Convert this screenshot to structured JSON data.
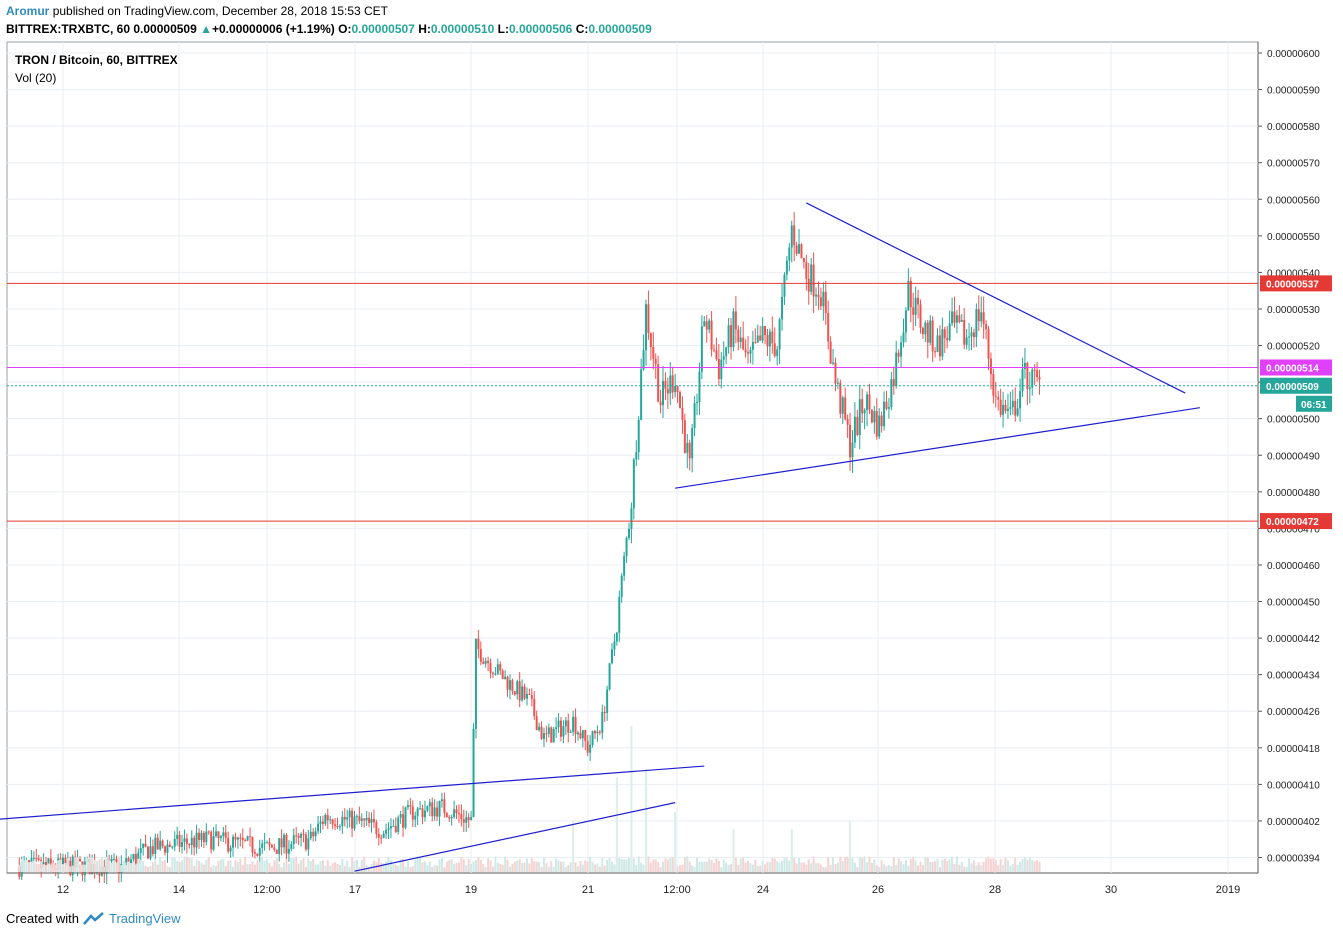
{
  "header": {
    "author": "Aromur",
    "published": "published on TradingView.com, December 28, 2018 15:53 CET",
    "symbol": "BITTREX:TRXBTC, 60",
    "last": "0.00000509",
    "change_arrow": "▲",
    "change": "+0.00000006 (+1.19%)",
    "o_label": "O:",
    "o": "0.00000507",
    "h_label": "H:",
    "h": "0.00000510",
    "l_label": "L:",
    "l": "0.00000506",
    "c_label": "C:",
    "c": "0.00000509"
  },
  "pane": {
    "title": "TRON / Bitcoin, 60, BITTREX",
    "volume": "Vol (20)"
  },
  "footer": {
    "created": "Created with",
    "brand": "TradingView",
    "logo_icon": "tradingview-logo-icon"
  },
  "colors": {
    "up": "#26a69a",
    "down": "#ef5350",
    "trend": "#1f1fd0",
    "resistance": "#e53935",
    "magenta": "#e040fb",
    "grid": "#e9eef2"
  },
  "chart_data": {
    "type": "candlestick",
    "y_ticks": [
      "0.00000600",
      "0.00000590",
      "0.00000580",
      "0.00000570",
      "0.00000560",
      "0.00000550",
      "0.00000540",
      "0.00000530",
      "0.00000520",
      "0.00000510",
      "0.00000500",
      "0.00000490",
      "0.00000480",
      "0.00000470",
      "0.00000460",
      "0.00000450",
      "0.00000442",
      "0.00000434",
      "0.00000426",
      "0.00000418",
      "0.00000410",
      "0.00000402",
      "0.00000394"
    ],
    "x_ticks": [
      "12",
      "14",
      "12:00",
      "17",
      "19",
      "21",
      "12:00",
      "24",
      "26",
      "28",
      "30",
      "2019"
    ],
    "horizontal_levels": [
      {
        "label": "0.00000537",
        "value": 537,
        "color": "#e53935",
        "style": "solid"
      },
      {
        "label": "0.00000514",
        "value": 514,
        "color": "#e040fb",
        "style": "solid"
      },
      {
        "label": "0.00000509",
        "value": 509,
        "color": "#26a69a",
        "style": "dotted"
      },
      {
        "label": "0.00000472",
        "value": 472,
        "color": "#e53935",
        "style": "solid"
      }
    ],
    "countdown": "06:51",
    "trendlines": [
      {
        "from": [
          "Dec 24 18:00",
          559
        ],
        "to": [
          "Dec 31 06:00",
          507
        ]
      },
      {
        "from": [
          "Dec 22 12:00",
          481
        ],
        "to": [
          "Dec 31 12:00",
          503
        ]
      },
      {
        "from": [
          "Dec 10 12:00",
          402
        ],
        "to": [
          "Dec 23 00:00",
          414
        ]
      },
      {
        "from": [
          "Dec 17 00:00",
          391
        ],
        "to": [
          "Dec 22 12:00",
          406
        ]
      }
    ],
    "price_path": [
      [
        "Dec 11 06:00",
        392
      ],
      [
        "Dec 13 00:00",
        392
      ],
      [
        "Dec 13 12:00",
        396
      ],
      [
        "Dec 14 12:00",
        398
      ],
      [
        "Dec 15 12:00",
        396
      ],
      [
        "Dec 16 06:00",
        398
      ],
      [
        "Dec 16 12:00",
        403
      ],
      [
        "Dec 17 00:00",
        402
      ],
      [
        "Dec 17 12:00",
        400
      ],
      [
        "Dec 18 00:00",
        404
      ],
      [
        "Dec 18 12:00",
        405
      ],
      [
        "Dec 19 00:00",
        402
      ],
      [
        "Dec 19 02:00",
        440
      ],
      [
        "Dec 19 12:00",
        434
      ],
      [
        "Dec 20 00:00",
        428
      ],
      [
        "Dec 20 06:00",
        420
      ],
      [
        "Dec 20 18:00",
        424
      ],
      [
        "Dec 21 00:00",
        418
      ],
      [
        "Dec 21 06:00",
        424
      ],
      [
        "Dec 21 12:00",
        445
      ],
      [
        "Dec 21 18:00",
        478
      ],
      [
        "Dec 22 00:00",
        530
      ],
      [
        "Dec 22 06:00",
        505
      ],
      [
        "Dec 22 12:00",
        512
      ],
      [
        "Dec 22 18:00",
        486
      ],
      [
        "Dec 23 00:00",
        528
      ],
      [
        "Dec 23 06:00",
        514
      ],
      [
        "Dec 23 12:00",
        525
      ],
      [
        "Dec 23 18:00",
        515
      ],
      [
        "Dec 24 00:00",
        522
      ],
      [
        "Dec 24 06:00",
        520
      ],
      [
        "Dec 24 12:00",
        552
      ],
      [
        "Dec 24 18:00",
        540
      ],
      [
        "Dec 25 00:00",
        535
      ],
      [
        "Dec 25 06:00",
        510
      ],
      [
        "Dec 25 12:00",
        493
      ],
      [
        "Dec 25 18:00",
        505
      ],
      [
        "Dec 26 00:00",
        498
      ],
      [
        "Dec 26 06:00",
        512
      ],
      [
        "Dec 26 12:00",
        535
      ],
      [
        "Dec 26 18:00",
        525
      ],
      [
        "Dec 27 00:00",
        520
      ],
      [
        "Dec 27 06:00",
        525
      ],
      [
        "Dec 27 12:00",
        522
      ],
      [
        "Dec 27 18:00",
        530
      ],
      [
        "Dec 28 00:00",
        505
      ],
      [
        "Dec 28 06:00",
        500
      ],
      [
        "Dec 28 12:00",
        512
      ],
      [
        "Dec 28 18:00",
        509
      ]
    ],
    "volume_spikes": [
      [
        "Dec 21 12:00",
        0.55
      ],
      [
        "Dec 21 18:00",
        0.85
      ],
      [
        "Dec 22 00:00",
        0.6
      ],
      [
        "Dec 20 18:00",
        0.3
      ],
      [
        "Dec 22 12:00",
        0.35
      ],
      [
        "Dec 23 12:00",
        0.25
      ],
      [
        "Dec 24 12:00",
        0.25
      ],
      [
        "Dec 25 12:00",
        0.3
      ]
    ]
  }
}
